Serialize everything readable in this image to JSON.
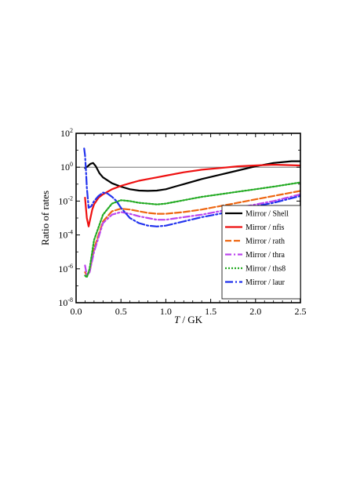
{
  "chart_data": {
    "type": "line",
    "title": "",
    "xlabel_italic": "T",
    "xlabel_rest": " / GK",
    "ylabel": "Ratio of rates",
    "xlim": [
      0.0,
      2.5
    ],
    "ylim_log10": [
      -8,
      2
    ],
    "y_scale": "log",
    "x_ticks": [
      0.0,
      0.5,
      1.0,
      1.5,
      2.0,
      2.5
    ],
    "x_tick_labels": [
      "0.0",
      "0.5",
      "1.0",
      "1.5",
      "2.0",
      "2.5"
    ],
    "y_ticks_log10": [
      -8,
      -6,
      -4,
      -2,
      0,
      2
    ],
    "y_tick_base": "10",
    "y_tick_exponents": [
      "-8",
      "-6",
      "-4",
      "-2",
      "0",
      "2"
    ],
    "reference_line_y": 1,
    "grid": false,
    "legend_position": "lower-right",
    "series": [
      {
        "name": "Mirror / Shell",
        "color": "#000000",
        "dash": "solid",
        "x": [
          0.1,
          0.13,
          0.16,
          0.19,
          0.22,
          0.26,
          0.3,
          0.4,
          0.5,
          0.6,
          0.7,
          0.8,
          0.9,
          1.0,
          1.1,
          1.2,
          1.4,
          1.6,
          1.8,
          2.0,
          2.2,
          2.4,
          2.5
        ],
        "y_log10": [
          -0.05,
          0.05,
          0.2,
          0.25,
          0.05,
          -0.35,
          -0.6,
          -0.95,
          -1.15,
          -1.3,
          -1.38,
          -1.4,
          -1.38,
          -1.3,
          -1.15,
          -1.0,
          -0.7,
          -0.45,
          -0.2,
          0.05,
          0.25,
          0.35,
          0.35
        ]
      },
      {
        "name": "Mirror / nfis",
        "color": "#ee1111",
        "dash": "solid",
        "x": [
          0.1,
          0.12,
          0.14,
          0.16,
          0.18,
          0.2,
          0.25,
          0.3,
          0.4,
          0.5,
          0.6,
          0.7,
          0.8,
          0.9,
          1.0,
          1.2,
          1.4,
          1.6,
          1.8,
          2.0,
          2.2,
          2.5
        ],
        "y_log10": [
          -1.8,
          -3.0,
          -3.5,
          -3.0,
          -2.5,
          -2.2,
          -1.8,
          -1.6,
          -1.3,
          -1.1,
          -0.95,
          -0.8,
          -0.7,
          -0.6,
          -0.5,
          -0.3,
          -0.15,
          -0.05,
          0.05,
          0.1,
          0.15,
          0.1
        ]
      },
      {
        "name": "Mirror / rath",
        "color": "#ee6611",
        "dash": "8,3",
        "x": [
          0.1,
          0.12,
          0.15,
          0.2,
          0.3,
          0.4,
          0.5,
          0.6,
          0.7,
          0.8,
          0.9,
          1.0,
          1.2,
          1.4,
          1.6,
          1.8,
          2.0,
          2.2,
          2.5
        ],
        "y_log10": [
          -6.2,
          -6.4,
          -6.2,
          -4.8,
          -3.2,
          -2.6,
          -2.45,
          -2.5,
          -2.6,
          -2.7,
          -2.75,
          -2.75,
          -2.65,
          -2.5,
          -2.3,
          -2.1,
          -1.9,
          -1.7,
          -1.4
        ]
      },
      {
        "name": "Mirror / thra",
        "color": "#bb44ee",
        "dash": "8,3,2,3",
        "x": [
          0.1,
          0.12,
          0.15,
          0.2,
          0.3,
          0.4,
          0.5,
          0.6,
          0.7,
          0.8,
          0.9,
          1.0,
          1.2,
          1.4,
          1.6,
          1.8,
          2.0,
          2.2,
          2.5
        ],
        "y_log10": [
          -5.8,
          -6.4,
          -6.2,
          -5.0,
          -3.3,
          -2.8,
          -2.65,
          -2.75,
          -2.9,
          -3.0,
          -3.1,
          -3.1,
          -2.95,
          -2.8,
          -2.6,
          -2.4,
          -2.2,
          -2.0,
          -1.6
        ]
      },
      {
        "name": "Mirror / ths8",
        "color": "#22aa22",
        "dash": "2,2",
        "x": [
          0.1,
          0.12,
          0.15,
          0.2,
          0.3,
          0.4,
          0.5,
          0.6,
          0.7,
          0.8,
          0.9,
          1.0,
          1.2,
          1.4,
          1.6,
          1.8,
          2.0,
          2.2,
          2.5
        ],
        "y_log10": [
          -6.4,
          -6.5,
          -6.0,
          -4.3,
          -2.8,
          -2.15,
          -1.95,
          -2.0,
          -2.1,
          -2.15,
          -2.2,
          -2.15,
          -1.95,
          -1.75,
          -1.6,
          -1.45,
          -1.3,
          -1.15,
          -0.9
        ]
      },
      {
        "name": "Mirror / laur",
        "color": "#2233ee",
        "dash": "10,3,2,3",
        "x": [
          0.09,
          0.1,
          0.11,
          0.12,
          0.14,
          0.17,
          0.2,
          0.25,
          0.3,
          0.35,
          0.4,
          0.45,
          0.5,
          0.6,
          0.7,
          0.8,
          0.9,
          1.0,
          1.2,
          1.4,
          1.6,
          1.8,
          2.0,
          2.2,
          2.5
        ],
        "y_log10": [
          1.1,
          0.7,
          -0.2,
          -1.2,
          -2.4,
          -2.3,
          -2.0,
          -1.7,
          -1.5,
          -1.55,
          -1.75,
          -2.0,
          -2.4,
          -3.0,
          -3.3,
          -3.45,
          -3.5,
          -3.45,
          -3.2,
          -2.95,
          -2.75,
          -2.5,
          -2.3,
          -2.1,
          -1.7
        ]
      }
    ]
  }
}
